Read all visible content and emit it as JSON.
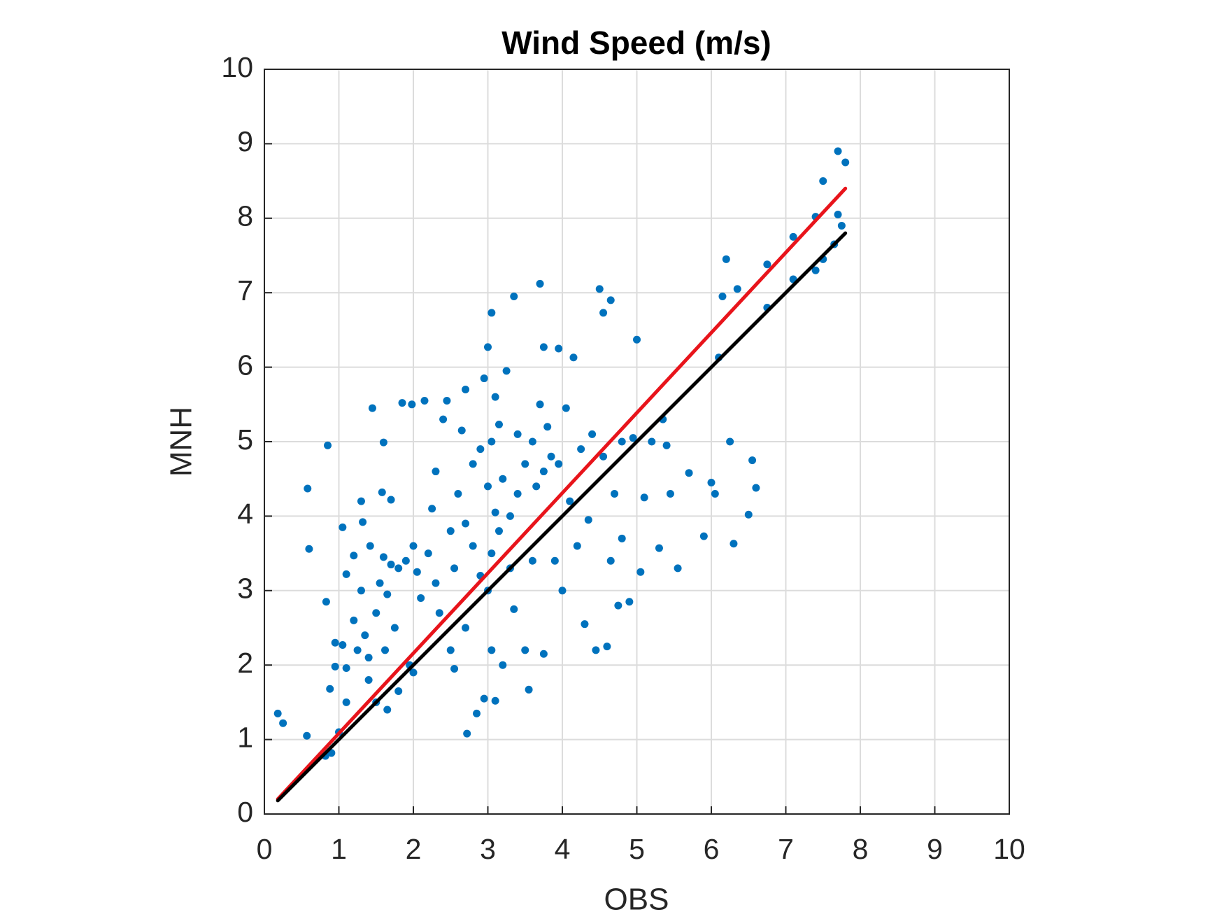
{
  "chart_data": {
    "type": "scatter",
    "title": "Wind Speed (m/s)",
    "x_label": "OBS",
    "y_label": "MNH",
    "xlim": [
      0,
      10
    ],
    "ylim": [
      0,
      10
    ],
    "xticks": [
      0,
      1,
      2,
      3,
      4,
      5,
      6,
      7,
      8,
      9,
      10
    ],
    "yticks": [
      0,
      1,
      2,
      3,
      4,
      5,
      6,
      7,
      8,
      9,
      10
    ],
    "grid": true,
    "series": [
      {
        "type": "scatter",
        "color": "#0072bd",
        "x": [
          0.18,
          0.25,
          0.58,
          0.6,
          0.57,
          0.83,
          0.85,
          0.88,
          0.82,
          0.9,
          0.95,
          0.95,
          1.0,
          1.05,
          1.05,
          1.1,
          1.1,
          1.1,
          1.2,
          1.2,
          1.25,
          1.3,
          1.3,
          1.32,
          1.35,
          1.4,
          1.4,
          1.42,
          1.45,
          1.5,
          1.5,
          1.55,
          1.58,
          1.6,
          1.6,
          1.62,
          1.65,
          1.65,
          1.7,
          1.7,
          1.75,
          1.8,
          1.8,
          1.85,
          1.9,
          1.95,
          1.98,
          2.0,
          2.0,
          2.05,
          2.1,
          2.15,
          2.2,
          2.25,
          2.3,
          2.3,
          2.35,
          2.4,
          2.45,
          2.5,
          2.5,
          2.55,
          2.55,
          2.6,
          2.65,
          2.7,
          2.7,
          2.7,
          2.72,
          2.8,
          2.8,
          2.85,
          2.9,
          2.9,
          2.95,
          2.95,
          3.0,
          3.0,
          3.0,
          3.05,
          3.05,
          3.05,
          3.05,
          3.1,
          3.1,
          3.1,
          3.15,
          3.15,
          3.2,
          3.2,
          3.25,
          3.3,
          3.3,
          3.35,
          3.35,
          3.4,
          3.4,
          3.5,
          3.5,
          3.55,
          3.6,
          3.6,
          3.65,
          3.7,
          3.7,
          3.75,
          3.75,
          3.75,
          3.8,
          3.85,
          3.9,
          3.95,
          3.95,
          4.0,
          4.05,
          4.1,
          4.15,
          4.2,
          4.25,
          4.3,
          4.35,
          4.4,
          4.45,
          4.5,
          4.55,
          4.55,
          4.6,
          4.65,
          4.65,
          4.7,
          4.75,
          4.8,
          4.8,
          4.9,
          5.0,
          5.05,
          5.1,
          5.3,
          5.35,
          5.4,
          5.45,
          5.55,
          5.7,
          5.9,
          6.0,
          6.1,
          6.15,
          6.2,
          6.3,
          6.35,
          6.5,
          6.55,
          6.6,
          6.75,
          6.75,
          7.1,
          7.1,
          7.4,
          7.4,
          7.5,
          7.5,
          7.65,
          7.7,
          7.7,
          7.75,
          7.8,
          6.05,
          6.25,
          4.95,
          5.2
        ],
        "values": [
          1.35,
          1.22,
          4.37,
          3.56,
          1.05,
          2.85,
          4.95,
          1.68,
          0.78,
          0.82,
          2.3,
          1.98,
          1.1,
          3.85,
          2.27,
          1.5,
          3.22,
          1.96,
          2.6,
          3.47,
          2.2,
          3.0,
          4.2,
          3.92,
          2.4,
          2.1,
          1.8,
          3.6,
          5.45,
          2.7,
          1.5,
          3.1,
          4.32,
          4.99,
          3.45,
          2.2,
          2.95,
          1.4,
          3.35,
          4.22,
          2.5,
          3.3,
          1.65,
          5.52,
          3.4,
          2.0,
          5.5,
          3.6,
          1.9,
          3.25,
          2.9,
          5.55,
          3.5,
          4.1,
          4.6,
          3.1,
          2.7,
          5.3,
          5.55,
          3.8,
          2.2,
          3.3,
          1.95,
          4.3,
          5.15,
          5.7,
          3.9,
          2.5,
          1.08,
          4.7,
          3.6,
          1.35,
          4.9,
          3.2,
          5.85,
          1.55,
          6.27,
          4.4,
          3.0,
          6.73,
          5.0,
          3.5,
          2.2,
          5.6,
          4.05,
          1.52,
          5.23,
          3.8,
          4.5,
          2.0,
          5.95,
          4.0,
          3.3,
          6.95,
          2.75,
          5.1,
          4.3,
          4.7,
          2.2,
          1.67,
          5.0,
          3.4,
          4.4,
          7.12,
          5.5,
          6.27,
          4.6,
          2.15,
          5.2,
          4.8,
          3.4,
          6.25,
          4.7,
          3.0,
          5.45,
          4.2,
          6.13,
          3.6,
          4.9,
          2.55,
          3.95,
          5.1,
          2.2,
          7.05,
          6.73,
          4.8,
          2.25,
          6.9,
          3.4,
          4.3,
          2.8,
          5.0,
          3.7,
          2.85,
          6.37,
          3.25,
          4.25,
          3.57,
          5.3,
          4.95,
          4.3,
          3.3,
          4.58,
          3.73,
          4.45,
          6.13,
          6.95,
          7.45,
          3.63,
          7.05,
          4.02,
          4.75,
          4.38,
          7.38,
          6.8,
          7.75,
          7.18,
          8.02,
          7.3,
          8.5,
          7.45,
          7.65,
          8.9,
          8.05,
          7.9,
          8.75,
          4.3,
          5.0,
          5.05,
          5.0
        ]
      },
      {
        "type": "line",
        "color": "#e8141b",
        "x": [
          0.18,
          7.8
        ],
        "values": [
          0.2,
          8.4
        ]
      },
      {
        "type": "line",
        "color": "#000000",
        "x": [
          0.18,
          7.8
        ],
        "values": [
          0.18,
          7.8
        ]
      }
    ]
  }
}
